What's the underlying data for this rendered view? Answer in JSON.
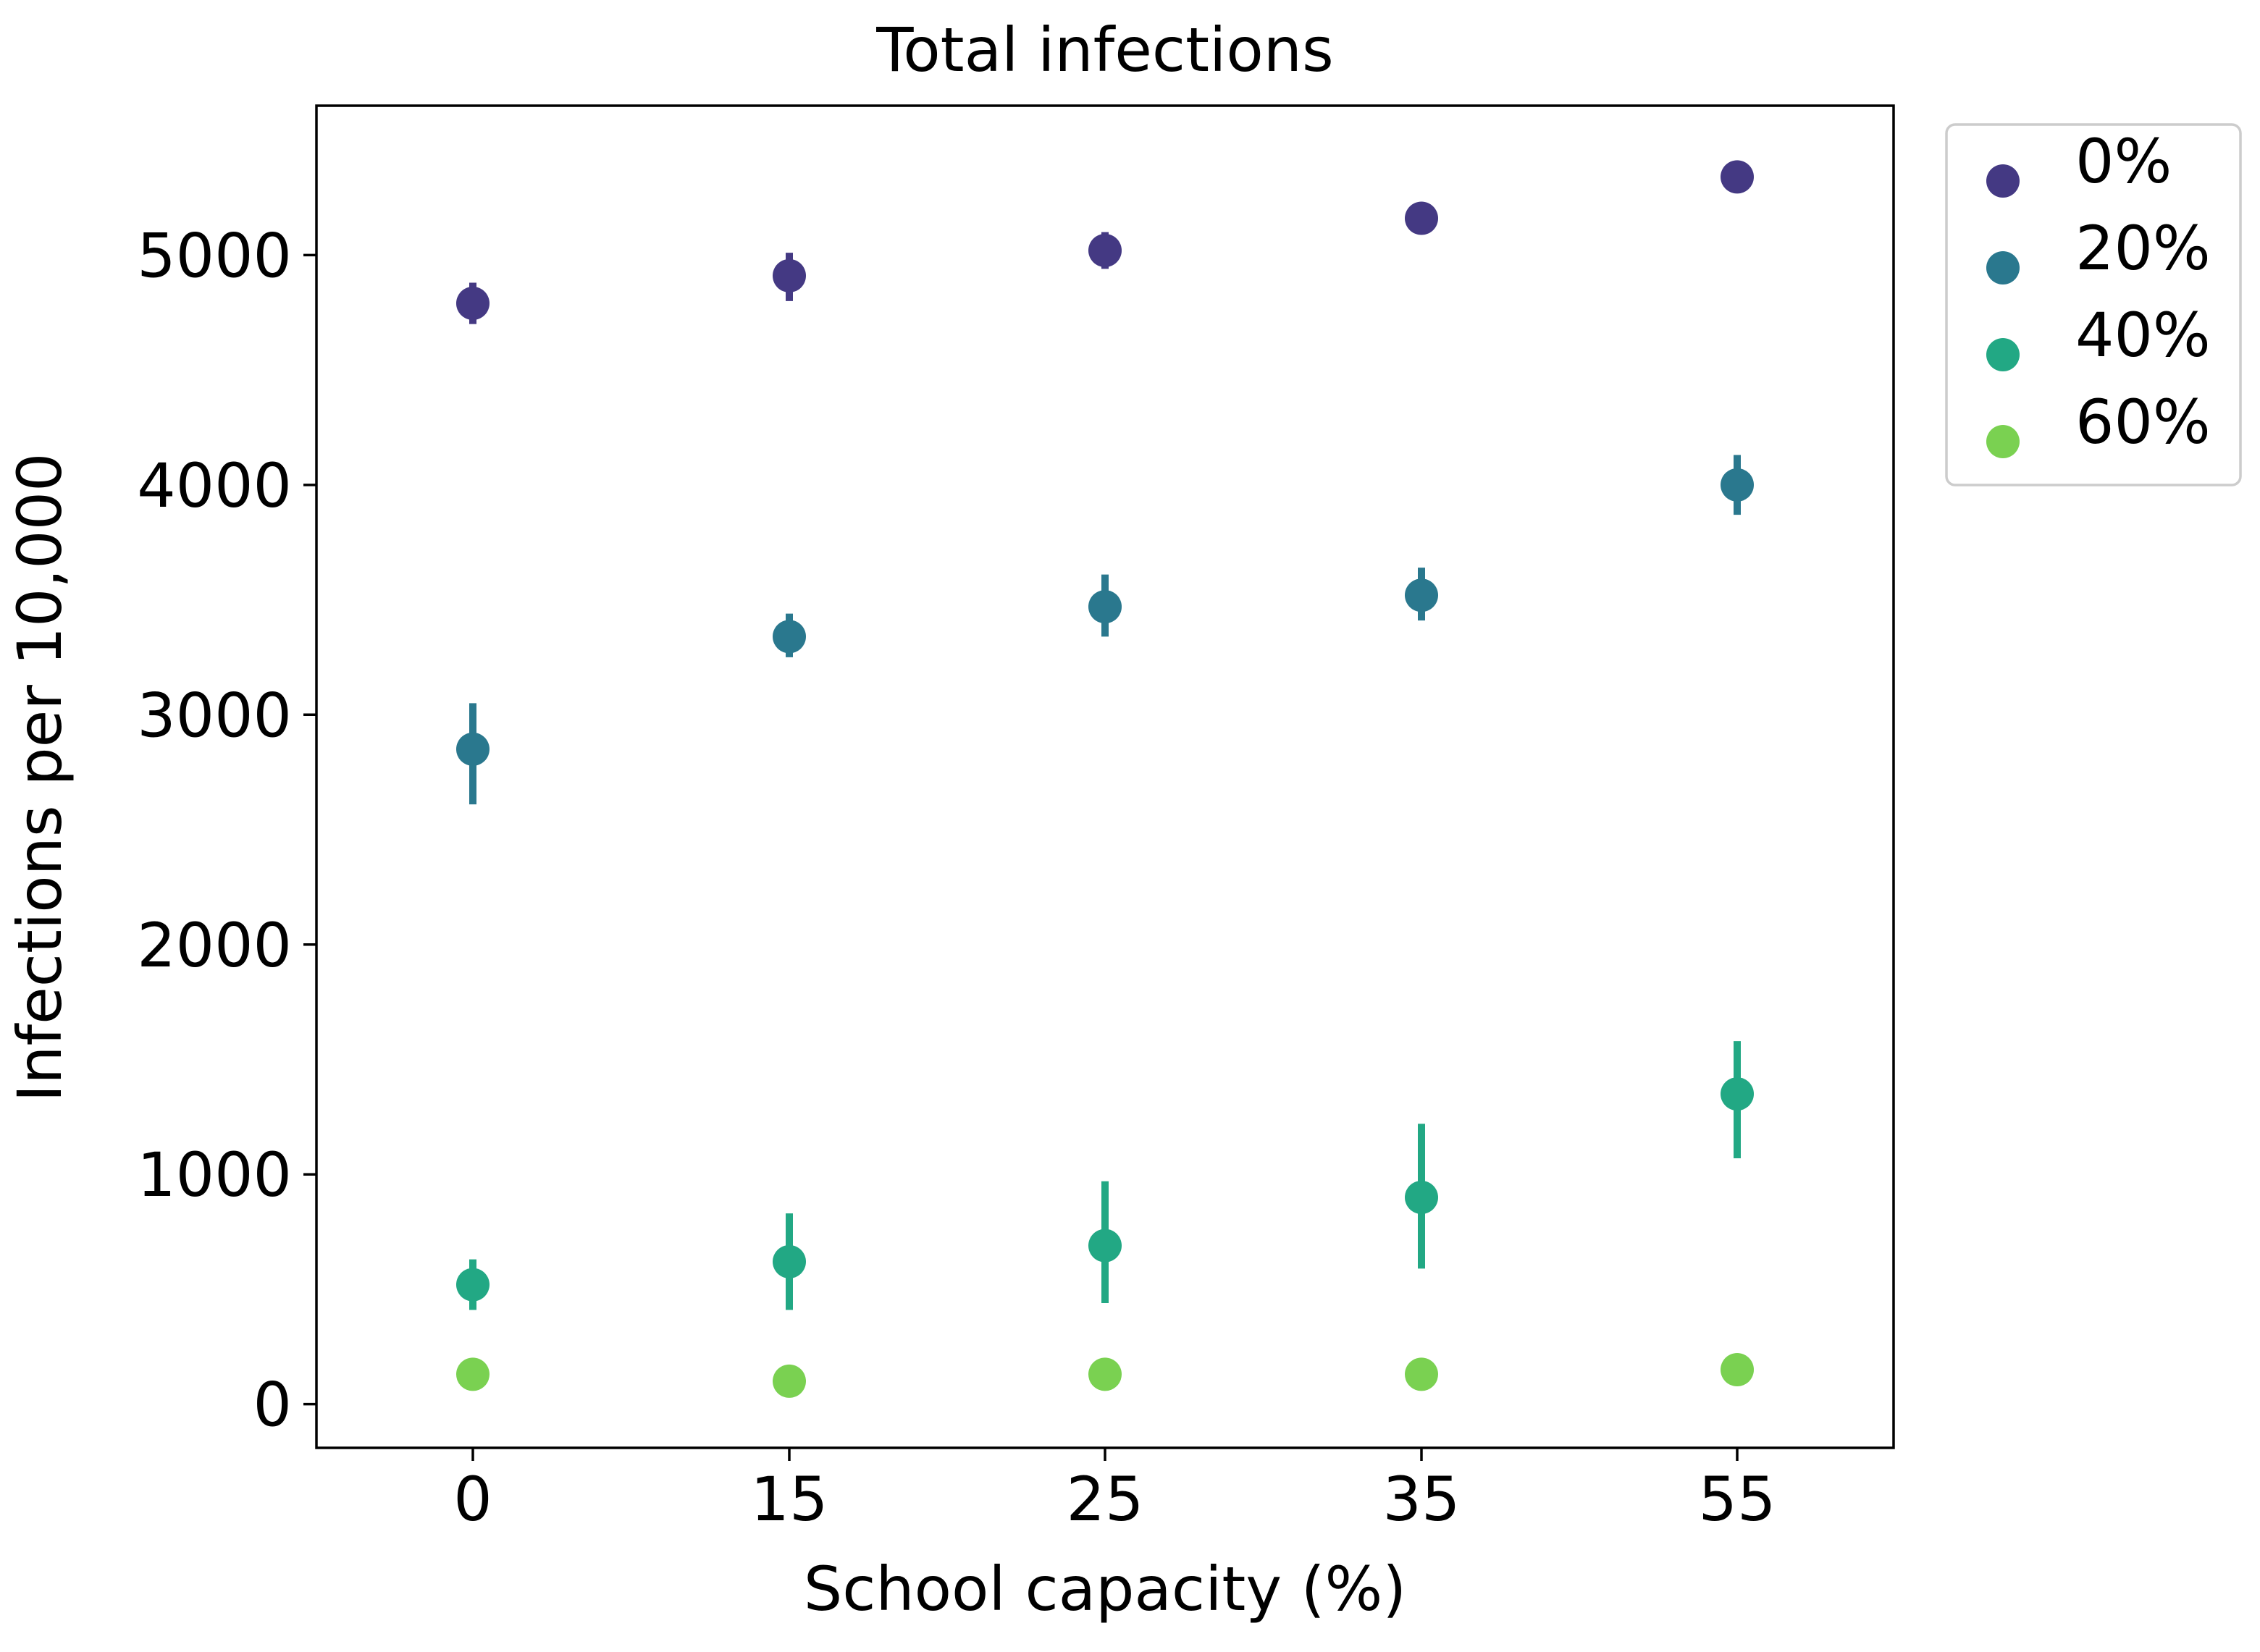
{
  "chart_data": {
    "type": "scatter",
    "title": "Total infections",
    "xlabel": "School capacity (%)",
    "ylabel": "Infections per 10,000",
    "categories": [
      "0",
      "15",
      "25",
      "35",
      "55"
    ],
    "yticks": [
      "0",
      "1000",
      "2000",
      "3000",
      "4000",
      "5000"
    ],
    "ylim": [
      -190,
      5650
    ],
    "grid": false,
    "legend_position": "outside-top-right",
    "series": [
      {
        "name": "0%",
        "color": "#443983",
        "values": [
          4790,
          4910,
          5020,
          5160,
          5340
        ],
        "err_low": [
          4700,
          4800,
          4940,
          5140,
          5300
        ],
        "err_high": [
          4880,
          5010,
          5100,
          5180,
          5410
        ]
      },
      {
        "name": "20%",
        "color": "#2a788e",
        "values": [
          2850,
          3340,
          3470,
          3520,
          4000
        ],
        "err_low": [
          2610,
          3250,
          3340,
          3410,
          3870
        ],
        "err_high": [
          3050,
          3440,
          3610,
          3640,
          4130
        ]
      },
      {
        "name": "40%",
        "color": "#22a884",
        "values": [
          520,
          620,
          690,
          900,
          1350
        ],
        "err_low": [
          410,
          410,
          440,
          590,
          1070
        ],
        "err_high": [
          630,
          830,
          970,
          1220,
          1580
        ]
      },
      {
        "name": "60%",
        "color": "#7ad151",
        "values": [
          130,
          100,
          130,
          130,
          150
        ],
        "err_low": [
          100,
          70,
          100,
          100,
          120
        ],
        "err_high": [
          160,
          130,
          160,
          160,
          180
        ]
      }
    ]
  }
}
